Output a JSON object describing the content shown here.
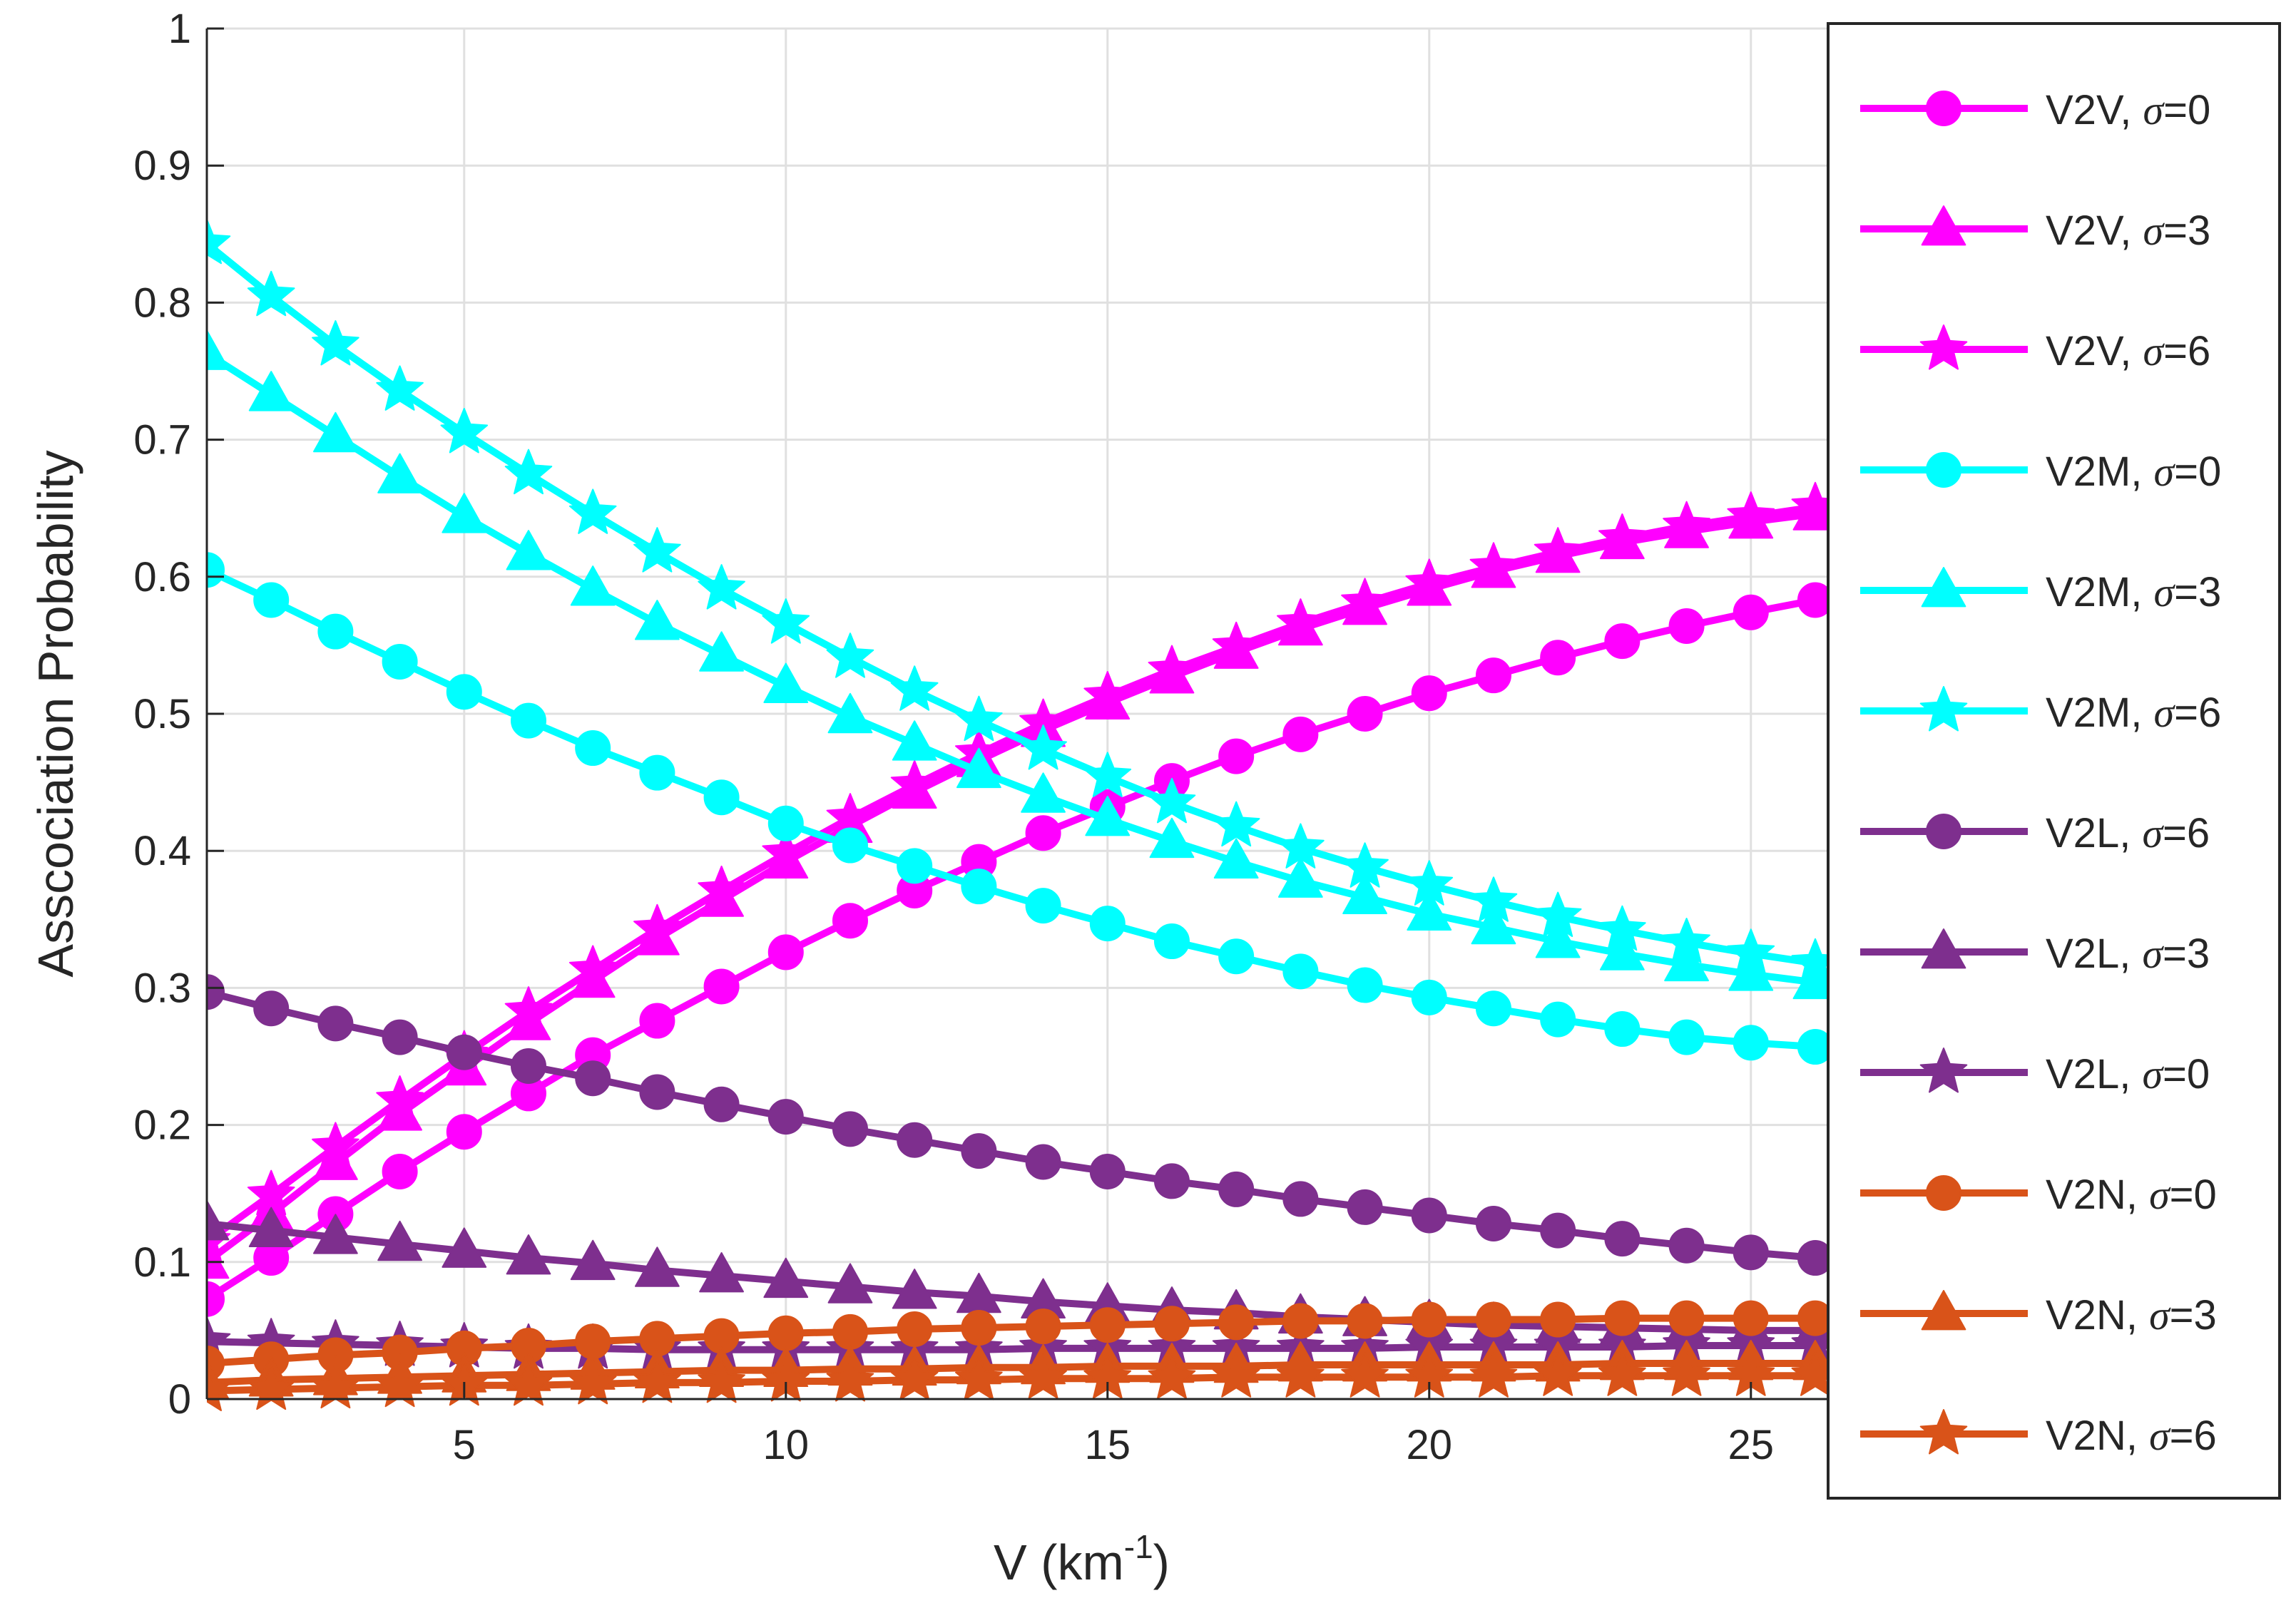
{
  "chart_data": {
    "type": "line",
    "title": "",
    "xlabel": "V (km",
    "xlabel_superscript": "-1",
    "xlabel_suffix": ")",
    "ylabel": "Asscociation Probability",
    "xlim": [
      1,
      26.2
    ],
    "ylim": [
      0,
      1
    ],
    "xticks": [
      5,
      10,
      15,
      20,
      25
    ],
    "xtick_labels": [
      "5",
      "10",
      "15",
      "20",
      "25"
    ],
    "yticks": [
      0,
      0.1,
      0.2,
      0.3,
      0.4,
      0.5,
      0.6,
      0.7,
      0.8,
      0.9,
      1
    ],
    "ytick_labels": [
      "0",
      "0.1",
      "0.2",
      "0.3",
      "0.4",
      "0.5",
      "0.6",
      "0.7",
      "0.8",
      "0.9",
      "1"
    ],
    "grid": true,
    "legend_position": "right",
    "x": [
      1,
      2,
      3,
      4,
      5,
      6,
      7,
      8,
      9,
      10,
      11,
      12,
      13,
      14,
      15,
      16,
      17,
      18,
      19,
      20,
      21,
      22,
      23,
      24,
      25,
      26
    ],
    "series": [
      {
        "name": "V2V",
        "sigma": "0",
        "color": "#ff00ff",
        "marker": "circle",
        "values": [
          0.073,
          0.103,
          0.135,
          0.166,
          0.195,
          0.223,
          0.251,
          0.276,
          0.301,
          0.326,
          0.349,
          0.371,
          0.392,
          0.413,
          0.432,
          0.451,
          0.469,
          0.485,
          0.5,
          0.515,
          0.528,
          0.541,
          0.553,
          0.564,
          0.574,
          0.583
        ]
      },
      {
        "name": "V2V",
        "sigma": "3",
        "color": "#ff00ff",
        "marker": "triangle",
        "values": [
          0.1,
          0.135,
          0.172,
          0.208,
          0.241,
          0.274,
          0.305,
          0.336,
          0.364,
          0.392,
          0.418,
          0.443,
          0.466,
          0.488,
          0.508,
          0.527,
          0.545,
          0.562,
          0.577,
          0.591,
          0.604,
          0.615,
          0.625,
          0.633,
          0.64,
          0.646
        ]
      },
      {
        "name": "V2V",
        "sigma": "6",
        "color": "#ff00ff",
        "marker": "star",
        "values": [
          0.115,
          0.149,
          0.184,
          0.218,
          0.251,
          0.283,
          0.313,
          0.343,
          0.371,
          0.398,
          0.424,
          0.448,
          0.471,
          0.493,
          0.513,
          0.532,
          0.549,
          0.566,
          0.581,
          0.595,
          0.607,
          0.618,
          0.628,
          0.637,
          0.644,
          0.651
        ]
      },
      {
        "name": "V2M",
        "sigma": "0",
        "color": "#00ffff",
        "marker": "circle",
        "values": [
          0.605,
          0.583,
          0.56,
          0.538,
          0.516,
          0.495,
          0.475,
          0.457,
          0.439,
          0.42,
          0.404,
          0.389,
          0.374,
          0.36,
          0.347,
          0.334,
          0.323,
          0.312,
          0.302,
          0.293,
          0.285,
          0.277,
          0.27,
          0.264,
          0.26,
          0.257
        ]
      },
      {
        "name": "V2M",
        "sigma": "3",
        "color": "#00ffff",
        "marker": "triangle",
        "values": [
          0.763,
          0.733,
          0.703,
          0.673,
          0.644,
          0.617,
          0.591,
          0.566,
          0.543,
          0.52,
          0.498,
          0.478,
          0.458,
          0.44,
          0.423,
          0.407,
          0.392,
          0.378,
          0.366,
          0.354,
          0.344,
          0.334,
          0.325,
          0.317,
          0.31,
          0.304
        ]
      },
      {
        "name": "V2M",
        "sigma": "6",
        "color": "#00ffff",
        "marker": "star",
        "values": [
          0.843,
          0.805,
          0.769,
          0.736,
          0.705,
          0.675,
          0.646,
          0.618,
          0.591,
          0.566,
          0.541,
          0.517,
          0.495,
          0.474,
          0.454,
          0.435,
          0.418,
          0.402,
          0.388,
          0.375,
          0.363,
          0.352,
          0.342,
          0.333,
          0.325,
          0.318
        ]
      },
      {
        "name": "V2L",
        "sigma": "6",
        "color": "#7e2f8e",
        "marker": "circle",
        "values": [
          0.297,
          0.285,
          0.274,
          0.264,
          0.253,
          0.243,
          0.234,
          0.224,
          0.215,
          0.206,
          0.197,
          0.189,
          0.181,
          0.173,
          0.166,
          0.159,
          0.153,
          0.146,
          0.14,
          0.134,
          0.128,
          0.123,
          0.117,
          0.112,
          0.107,
          0.103
        ]
      },
      {
        "name": "V2L",
        "sigma": "3",
        "color": "#7e2f8e",
        "marker": "triangle",
        "values": [
          0.128,
          0.123,
          0.118,
          0.113,
          0.108,
          0.103,
          0.099,
          0.094,
          0.09,
          0.086,
          0.082,
          0.078,
          0.075,
          0.071,
          0.068,
          0.065,
          0.063,
          0.06,
          0.058,
          0.056,
          0.054,
          0.053,
          0.052,
          0.051,
          0.05,
          0.05
        ]
      },
      {
        "name": "V2L",
        "sigma": "0",
        "color": "#7e2f8e",
        "marker": "star",
        "values": [
          0.042,
          0.041,
          0.04,
          0.039,
          0.038,
          0.037,
          0.037,
          0.036,
          0.036,
          0.036,
          0.036,
          0.036,
          0.036,
          0.037,
          0.037,
          0.037,
          0.037,
          0.037,
          0.037,
          0.038,
          0.038,
          0.038,
          0.038,
          0.039,
          0.039,
          0.039
        ]
      },
      {
        "name": "V2N",
        "sigma": "0",
        "color": "#d95319",
        "marker": "circle",
        "values": [
          0.026,
          0.029,
          0.032,
          0.034,
          0.037,
          0.039,
          0.042,
          0.044,
          0.046,
          0.048,
          0.049,
          0.051,
          0.052,
          0.053,
          0.054,
          0.055,
          0.056,
          0.057,
          0.057,
          0.058,
          0.058,
          0.058,
          0.059,
          0.059,
          0.059,
          0.059
        ]
      },
      {
        "name": "V2N",
        "sigma": "3",
        "color": "#d95319",
        "marker": "triangle",
        "values": [
          0.012,
          0.014,
          0.015,
          0.016,
          0.017,
          0.018,
          0.019,
          0.02,
          0.021,
          0.021,
          0.022,
          0.022,
          0.023,
          0.023,
          0.024,
          0.024,
          0.024,
          0.025,
          0.025,
          0.025,
          0.025,
          0.025,
          0.026,
          0.026,
          0.026,
          0.026
        ]
      },
      {
        "name": "V2N",
        "sigma": "6",
        "color": "#d95319",
        "marker": "star",
        "values": [
          0.006,
          0.007,
          0.008,
          0.009,
          0.01,
          0.01,
          0.011,
          0.012,
          0.012,
          0.013,
          0.013,
          0.014,
          0.014,
          0.015,
          0.015,
          0.015,
          0.016,
          0.016,
          0.016,
          0.016,
          0.016,
          0.017,
          0.017,
          0.017,
          0.017,
          0.017
        ]
      }
    ],
    "legend": [
      {
        "label": "V2V, ",
        "sigma_symbol": "σ",
        "value": "=0"
      },
      {
        "label": "V2V, ",
        "sigma_symbol": "σ",
        "value": "=3"
      },
      {
        "label": "V2V, ",
        "sigma_symbol": "σ",
        "value": "=6"
      },
      {
        "label": "V2M, ",
        "sigma_symbol": "σ",
        "value": "=0"
      },
      {
        "label": "V2M, ",
        "sigma_symbol": "σ",
        "value": "=3"
      },
      {
        "label": "V2M, ",
        "sigma_symbol": "σ",
        "value": "=6"
      },
      {
        "label": "V2L, ",
        "sigma_symbol": "σ",
        "value": "=6"
      },
      {
        "label": "V2L, ",
        "sigma_symbol": "σ",
        "value": "=3"
      },
      {
        "label": "V2L, ",
        "sigma_symbol": "σ",
        "value": "=0"
      },
      {
        "label": "V2N, ",
        "sigma_symbol": "σ",
        "value": "=0"
      },
      {
        "label": "V2N, ",
        "sigma_symbol": "σ",
        "value": "=3"
      },
      {
        "label": "V2N, ",
        "sigma_symbol": "σ",
        "value": "=6"
      }
    ]
  }
}
